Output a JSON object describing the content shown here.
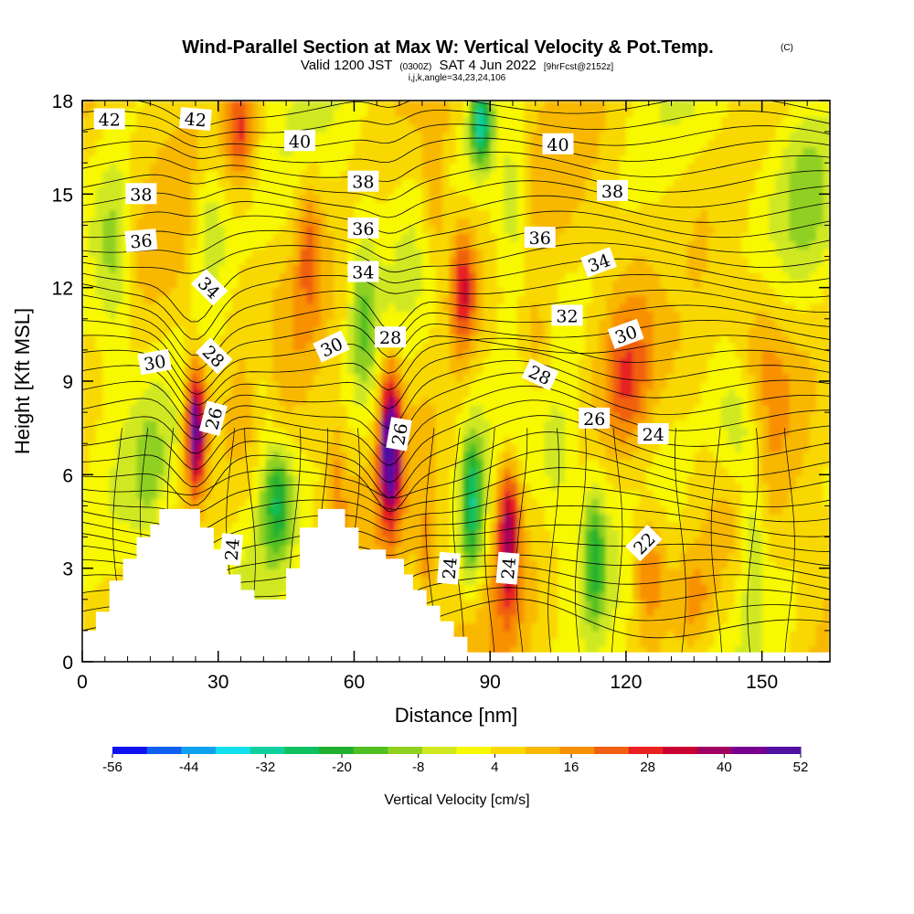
{
  "chart_data": {
    "type": "heatmap",
    "title": "Wind-Parallel Section at Max W: Vertical Velocity & Pot.Temp.",
    "title_mark": "(C)",
    "subtitle": {
      "valid": "Valid 1200 JST",
      "utc": "(0300Z)",
      "date": "SAT 4 Jun 2022",
      "fcst": "[9hrFcst@2152z]",
      "params": "i,j,k,angle=34,23,24,106"
    },
    "xlabel": "Distance [nm]",
    "ylabel": "Height [Kft MSL]",
    "xlim": [
      0,
      165
    ],
    "ylim": [
      0,
      18
    ],
    "xticks": [
      "0",
      "30",
      "60",
      "90",
      "120",
      "150"
    ],
    "yticks": [
      "0",
      "3",
      "6",
      "9",
      "12",
      "15",
      "18"
    ],
    "colorbar": {
      "label": "Vertical Velocity [cm/s]",
      "ticks": [
        "-56",
        "-44",
        "-32",
        "-20",
        "-8",
        "4",
        "16",
        "28",
        "40",
        "52"
      ],
      "colors": [
        "#1010f0",
        "#1060f0",
        "#10a0f0",
        "#10e0f0",
        "#10d0a0",
        "#10c060",
        "#20b030",
        "#50c020",
        "#90d020",
        "#d0e820",
        "#f8f800",
        "#f8d800",
        "#f8b800",
        "#f89000",
        "#f06010",
        "#e82020",
        "#c80030",
        "#a00060",
        "#780090",
        "#5010a0"
      ]
    },
    "vertical_velocity_features": [
      {
        "x": 25,
        "y": 7.5,
        "value": 45
      },
      {
        "x": 68,
        "y": 7.0,
        "value": 50
      },
      {
        "x": 94,
        "y": 4.0,
        "value": 35
      },
      {
        "x": 86,
        "y": 4.5,
        "value": -30
      },
      {
        "x": 113,
        "y": 3.5,
        "value": -22
      },
      {
        "x": 43,
        "y": 5.0,
        "value": -25
      },
      {
        "x": 88,
        "y": 17.5,
        "value": -35
      },
      {
        "x": 35,
        "y": 17.0,
        "value": 20
      },
      {
        "x": 84,
        "y": 12.0,
        "value": 28
      },
      {
        "x": 125,
        "y": 3.0,
        "value": 22
      }
    ],
    "terrain": [
      [
        0,
        1.0
      ],
      [
        3,
        1.0
      ],
      [
        3,
        1.6
      ],
      [
        6,
        1.6
      ],
      [
        6,
        2.6
      ],
      [
        9,
        2.6
      ],
      [
        9,
        3.3
      ],
      [
        12,
        3.3
      ],
      [
        12,
        4.0
      ],
      [
        15,
        4.0
      ],
      [
        15,
        4.4
      ],
      [
        17,
        4.4
      ],
      [
        17,
        4.9
      ],
      [
        26,
        4.9
      ],
      [
        26,
        4.3
      ],
      [
        29,
        4.3
      ],
      [
        29,
        3.6
      ],
      [
        32,
        3.6
      ],
      [
        32,
        2.8
      ],
      [
        35,
        2.8
      ],
      [
        35,
        2.3
      ],
      [
        38,
        2.3
      ],
      [
        38,
        2.0
      ],
      [
        45,
        2.0
      ],
      [
        45,
        3.0
      ],
      [
        48,
        3.0
      ],
      [
        48,
        4.3
      ],
      [
        52,
        4.3
      ],
      [
        52,
        4.9
      ],
      [
        58,
        4.9
      ],
      [
        58,
        4.3
      ],
      [
        61,
        4.3
      ],
      [
        61,
        3.6
      ],
      [
        67,
        3.6
      ],
      [
        67,
        3.3
      ],
      [
        71,
        3.3
      ],
      [
        71,
        2.8
      ],
      [
        73,
        2.8
      ],
      [
        73,
        2.3
      ],
      [
        76,
        2.3
      ],
      [
        76,
        1.8
      ],
      [
        79,
        1.8
      ],
      [
        79,
        1.3
      ],
      [
        82,
        1.3
      ],
      [
        82,
        0.8
      ],
      [
        85,
        0.8
      ],
      [
        85,
        0.3
      ],
      [
        165,
        0.3
      ]
    ],
    "contour_labels": [
      {
        "text": "42",
        "x": 6,
        "y": 17.4,
        "angle": 0
      },
      {
        "text": "42",
        "x": 25,
        "y": 17.4,
        "angle": 5
      },
      {
        "text": "40",
        "x": 48,
        "y": 16.7,
        "angle": 0
      },
      {
        "text": "40",
        "x": 105,
        "y": 16.6,
        "angle": 0
      },
      {
        "text": "38",
        "x": 13,
        "y": 15.0,
        "angle": 0
      },
      {
        "text": "38",
        "x": 62,
        "y": 15.4,
        "angle": 0
      },
      {
        "text": "38",
        "x": 117,
        "y": 15.1,
        "angle": 0
      },
      {
        "text": "36",
        "x": 13,
        "y": 13.5,
        "angle": -5
      },
      {
        "text": "36",
        "x": 62,
        "y": 13.9,
        "angle": 0
      },
      {
        "text": "36",
        "x": 101,
        "y": 13.6,
        "angle": 0
      },
      {
        "text": "34",
        "x": 28,
        "y": 12.0,
        "angle": 45
      },
      {
        "text": "34",
        "x": 62,
        "y": 12.5,
        "angle": 0
      },
      {
        "text": "34",
        "x": 114,
        "y": 12.8,
        "angle": -20
      },
      {
        "text": "32",
        "x": 107,
        "y": 11.1,
        "angle": 0
      },
      {
        "text": "30",
        "x": 16,
        "y": 9.6,
        "angle": -10
      },
      {
        "text": "30",
        "x": 55,
        "y": 10.1,
        "angle": -25
      },
      {
        "text": "30",
        "x": 120,
        "y": 10.5,
        "angle": -20
      },
      {
        "text": "28",
        "x": 29,
        "y": 9.8,
        "angle": 45
      },
      {
        "text": "28",
        "x": 68,
        "y": 10.4,
        "angle": 0
      },
      {
        "text": "28",
        "x": 101,
        "y": 9.2,
        "angle": 25
      },
      {
        "text": "26",
        "x": 29,
        "y": 7.8,
        "angle": -75
      },
      {
        "text": "26",
        "x": 70,
        "y": 7.3,
        "angle": -80
      },
      {
        "text": "26",
        "x": 113,
        "y": 7.8,
        "angle": 0
      },
      {
        "text": "24",
        "x": 33,
        "y": 3.6,
        "angle": -85
      },
      {
        "text": "24",
        "x": 81,
        "y": 3.0,
        "angle": -85
      },
      {
        "text": "24",
        "x": 94,
        "y": 3.0,
        "angle": -85
      },
      {
        "text": "24",
        "x": 126,
        "y": 7.3,
        "angle": 0
      },
      {
        "text": "22",
        "x": 124,
        "y": 3.8,
        "angle": -45
      }
    ]
  }
}
